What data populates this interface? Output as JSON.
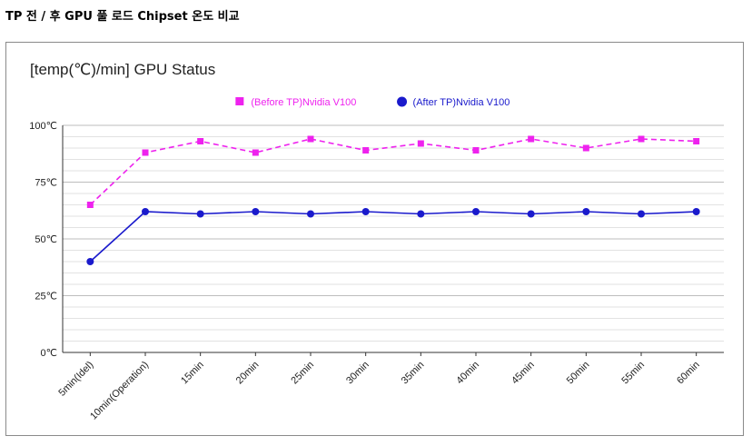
{
  "page": {
    "title": "TP 전 / 후 GPU 풀 로드 Chipset 온도 비교"
  },
  "chart_data": {
    "type": "line",
    "title": "[temp(℃)/min] GPU Status",
    "xlabel": "",
    "ylabel": "",
    "ylim": [
      0,
      100
    ],
    "yticks": [
      "0℃",
      "25℃",
      "50℃",
      "75℃",
      "100℃"
    ],
    "grid": true,
    "legend": "top",
    "categories": [
      "5min(Idel)",
      "10min(Operation)",
      "15min",
      "20min",
      "25min",
      "30min",
      "35min",
      "40min",
      "45min",
      "50min",
      "55min",
      "60min"
    ],
    "series": [
      {
        "name": "(Before TP)Nvidia V100",
        "color": "#ee22ee",
        "marker": "square",
        "dash": true,
        "values": [
          65,
          88,
          93,
          88,
          94,
          89,
          92,
          89,
          94,
          90,
          94,
          93
        ]
      },
      {
        "name": "(After TP)Nvidia V100",
        "color": "#1a1acc",
        "marker": "circle",
        "dash": false,
        "values": [
          40,
          62,
          61,
          62,
          61,
          62,
          61,
          62,
          61,
          62,
          61,
          62
        ]
      }
    ]
  }
}
